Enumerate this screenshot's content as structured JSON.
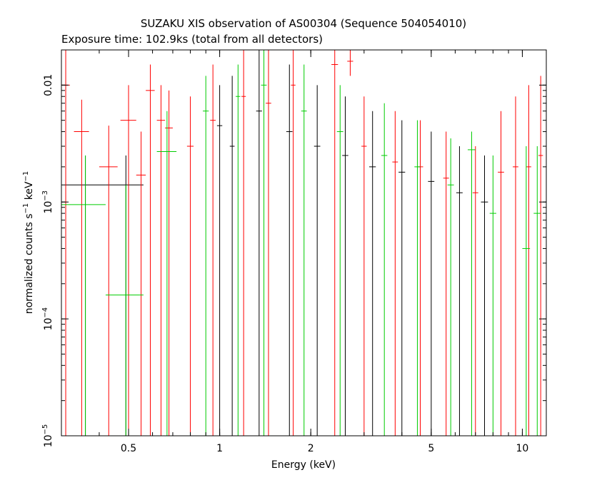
{
  "chart_data": {
    "type": "scatter",
    "title": "SUZAKU XIS observation of AS00304 (Sequence 504054010)",
    "subtitle": "Exposure time: 102.9ks (total from all detectors)",
    "xlabel": "Energy (keV)",
    "ylabel_main": "normalized counts s",
    "ylabel_sup1": "−1",
    "ylabel_mid": " keV",
    "ylabel_sup2": "−1",
    "x_scale": "log",
    "y_scale": "log",
    "xlim": [
      0.3,
      12.0
    ],
    "ylim": [
      1e-05,
      0.02
    ],
    "x_ticks": [
      {
        "value": 0.5,
        "label": "0.5"
      },
      {
        "value": 1,
        "label": "1"
      },
      {
        "value": 2,
        "label": "2"
      },
      {
        "value": 5,
        "label": "5"
      },
      {
        "value": 10,
        "label": "10"
      }
    ],
    "y_ticks": [
      {
        "value": 0.01,
        "base": "0.01",
        "exp": ""
      },
      {
        "value": 0.001,
        "base": "10",
        "exp": "−3"
      },
      {
        "value": 0.0001,
        "base": "10",
        "exp": "−4"
      },
      {
        "value": 1e-05,
        "base": "10",
        "exp": "−5"
      }
    ],
    "grid": false,
    "series": [
      {
        "color": "#000000",
        "points": [
          {
            "x": 0.36,
            "xlo": 0.3,
            "xhi": 0.42,
            "y": 0.0014,
            "ylo": 1e-05,
            "yhi": 0.0025
          },
          {
            "x": 0.49,
            "xlo": 0.42,
            "xhi": 0.56,
            "y": 0.0014,
            "ylo": 1e-05,
            "yhi": 0.0025
          },
          {
            "x": 1.0,
            "xlo": 0.98,
            "xhi": 1.02,
            "y": 0.0045,
            "ylo": 1e-05,
            "yhi": 0.01
          },
          {
            "x": 1.1,
            "xlo": 1.08,
            "xhi": 1.12,
            "y": 0.003,
            "ylo": 1e-05,
            "yhi": 0.012
          },
          {
            "x": 1.35,
            "xlo": 1.32,
            "xhi": 1.38,
            "y": 0.006,
            "ylo": 1e-05,
            "yhi": 0.02
          },
          {
            "x": 1.7,
            "xlo": 1.66,
            "xhi": 1.74,
            "y": 0.004,
            "ylo": 1e-05,
            "yhi": 0.015
          },
          {
            "x": 2.1,
            "xlo": 2.05,
            "xhi": 2.15,
            "y": 0.003,
            "ylo": 1e-05,
            "yhi": 0.01
          },
          {
            "x": 2.6,
            "xlo": 2.54,
            "xhi": 2.66,
            "y": 0.0025,
            "ylo": 1e-05,
            "yhi": 0.008
          },
          {
            "x": 3.2,
            "xlo": 3.12,
            "xhi": 3.28,
            "y": 0.002,
            "ylo": 1e-05,
            "yhi": 0.006
          },
          {
            "x": 4.0,
            "xlo": 3.9,
            "xhi": 4.1,
            "y": 0.0018,
            "ylo": 1e-05,
            "yhi": 0.005
          },
          {
            "x": 5.0,
            "xlo": 4.88,
            "xhi": 5.12,
            "y": 0.0015,
            "ylo": 1e-05,
            "yhi": 0.004
          },
          {
            "x": 6.2,
            "xlo": 6.05,
            "xhi": 6.35,
            "y": 0.0012,
            "ylo": 1e-05,
            "yhi": 0.003
          },
          {
            "x": 7.5,
            "xlo": 7.3,
            "xhi": 7.7,
            "y": 0.001,
            "ylo": 1e-05,
            "yhi": 0.0025
          }
        ]
      },
      {
        "color": "#ff0000",
        "points": [
          {
            "x": 0.31,
            "xlo": 0.3,
            "xhi": 0.32,
            "y": 0.01,
            "ylo": 1e-05,
            "yhi": 0.02
          },
          {
            "x": 0.35,
            "xlo": 0.33,
            "xhi": 0.37,
            "y": 0.004,
            "ylo": 1e-05,
            "yhi": 0.0075
          },
          {
            "x": 0.43,
            "xlo": 0.4,
            "xhi": 0.46,
            "y": 0.002,
            "ylo": 1e-05,
            "yhi": 0.0045
          },
          {
            "x": 0.5,
            "xlo": 0.47,
            "xhi": 0.53,
            "y": 0.005,
            "ylo": 1e-05,
            "yhi": 0.01
          },
          {
            "x": 0.55,
            "xlo": 0.53,
            "xhi": 0.57,
            "y": 0.0017,
            "ylo": 1e-05,
            "yhi": 0.004
          },
          {
            "x": 0.59,
            "xlo": 0.57,
            "xhi": 0.61,
            "y": 0.009,
            "ylo": 1e-05,
            "yhi": 0.015
          },
          {
            "x": 0.64,
            "xlo": 0.62,
            "xhi": 0.66,
            "y": 0.005,
            "ylo": 1e-05,
            "yhi": 0.01
          },
          {
            "x": 0.68,
            "xlo": 0.66,
            "xhi": 0.7,
            "y": 0.0043,
            "ylo": 1e-05,
            "yhi": 0.009
          },
          {
            "x": 0.8,
            "xlo": 0.78,
            "xhi": 0.82,
            "y": 0.003,
            "ylo": 1e-05,
            "yhi": 0.008
          },
          {
            "x": 0.95,
            "xlo": 0.93,
            "xhi": 0.97,
            "y": 0.005,
            "ylo": 1e-05,
            "yhi": 0.015
          },
          {
            "x": 1.2,
            "xlo": 1.18,
            "xhi": 1.22,
            "y": 0.008,
            "ylo": 1e-05,
            "yhi": 0.02
          },
          {
            "x": 1.45,
            "xlo": 1.42,
            "xhi": 1.48,
            "y": 0.007,
            "ylo": 1e-05,
            "yhi": 0.02
          },
          {
            "x": 1.75,
            "xlo": 1.72,
            "xhi": 1.78,
            "y": 0.01,
            "ylo": 1e-05,
            "yhi": 0.02
          },
          {
            "x": 2.4,
            "xlo": 2.34,
            "xhi": 2.46,
            "y": 0.015,
            "ylo": 1e-05,
            "yhi": 0.02
          },
          {
            "x": 2.7,
            "xlo": 2.64,
            "xhi": 2.76,
            "y": 0.016,
            "ylo": 0.012,
            "yhi": 0.02
          },
          {
            "x": 3.0,
            "xlo": 2.94,
            "xhi": 3.06,
            "y": 0.003,
            "ylo": 1e-05,
            "yhi": 0.008
          },
          {
            "x": 3.8,
            "xlo": 3.72,
            "xhi": 3.88,
            "y": 0.0022,
            "ylo": 1e-05,
            "yhi": 0.006
          },
          {
            "x": 4.6,
            "xlo": 4.5,
            "xhi": 4.7,
            "y": 0.002,
            "ylo": 1e-05,
            "yhi": 0.005
          },
          {
            "x": 5.6,
            "xlo": 5.48,
            "xhi": 5.72,
            "y": 0.0016,
            "ylo": 1e-05,
            "yhi": 0.004
          },
          {
            "x": 7.0,
            "xlo": 6.85,
            "xhi": 7.15,
            "y": 0.0012,
            "ylo": 1e-05,
            "yhi": 0.003
          },
          {
            "x": 8.5,
            "xlo": 8.3,
            "xhi": 8.7,
            "y": 0.0018,
            "ylo": 1e-05,
            "yhi": 0.006
          },
          {
            "x": 9.5,
            "xlo": 9.3,
            "xhi": 9.7,
            "y": 0.002,
            "ylo": 1e-05,
            "yhi": 0.008
          },
          {
            "x": 10.5,
            "xlo": 10.3,
            "xhi": 10.7,
            "y": 0.002,
            "ylo": 1e-05,
            "yhi": 0.01
          },
          {
            "x": 11.5,
            "xlo": 11.3,
            "xhi": 11.7,
            "y": 0.0025,
            "ylo": 1e-05,
            "yhi": 0.012
          }
        ]
      },
      {
        "color": "#00cc00",
        "points": [
          {
            "x": 0.36,
            "xlo": 0.3,
            "xhi": 0.42,
            "y": 0.00095,
            "ylo": 1e-05,
            "yhi": 0.0025
          },
          {
            "x": 0.49,
            "xlo": 0.42,
            "xhi": 0.56,
            "y": 0.00016,
            "ylo": 1e-05,
            "yhi": 0.0014
          },
          {
            "x": 0.67,
            "xlo": 0.62,
            "xhi": 0.72,
            "y": 0.0027,
            "ylo": 1e-05,
            "yhi": 0.006
          },
          {
            "x": 0.9,
            "xlo": 0.88,
            "xhi": 0.92,
            "y": 0.006,
            "ylo": 1e-05,
            "yhi": 0.012
          },
          {
            "x": 1.15,
            "xlo": 1.13,
            "xhi": 1.17,
            "y": 0.008,
            "ylo": 1e-05,
            "yhi": 0.015
          },
          {
            "x": 1.4,
            "xlo": 1.37,
            "xhi": 1.43,
            "y": 0.01,
            "ylo": 1e-05,
            "yhi": 0.02
          },
          {
            "x": 1.9,
            "xlo": 1.86,
            "xhi": 1.94,
            "y": 0.006,
            "ylo": 1e-05,
            "yhi": 0.015
          },
          {
            "x": 2.5,
            "xlo": 2.44,
            "xhi": 2.56,
            "y": 0.004,
            "ylo": 1e-05,
            "yhi": 0.01
          },
          {
            "x": 3.5,
            "xlo": 3.42,
            "xhi": 3.58,
            "y": 0.0025,
            "ylo": 1e-05,
            "yhi": 0.007
          },
          {
            "x": 4.5,
            "xlo": 4.4,
            "xhi": 4.6,
            "y": 0.002,
            "ylo": 1e-05,
            "yhi": 0.005
          },
          {
            "x": 5.8,
            "xlo": 5.66,
            "xhi": 5.94,
            "y": 0.0014,
            "ylo": 1e-05,
            "yhi": 0.0035
          },
          {
            "x": 6.8,
            "xlo": 6.6,
            "xhi": 7.0,
            "y": 0.0028,
            "ylo": 1e-05,
            "yhi": 0.004
          },
          {
            "x": 8.0,
            "xlo": 7.8,
            "xhi": 8.2,
            "y": 0.0008,
            "ylo": 1e-05,
            "yhi": 0.0025
          },
          {
            "x": 10.3,
            "xlo": 10.0,
            "xhi": 10.6,
            "y": 0.0004,
            "ylo": 1e-05,
            "yhi": 0.003
          },
          {
            "x": 11.2,
            "xlo": 10.9,
            "xhi": 11.5,
            "y": 0.0008,
            "ylo": 1e-05,
            "yhi": 0.003
          }
        ]
      }
    ]
  }
}
